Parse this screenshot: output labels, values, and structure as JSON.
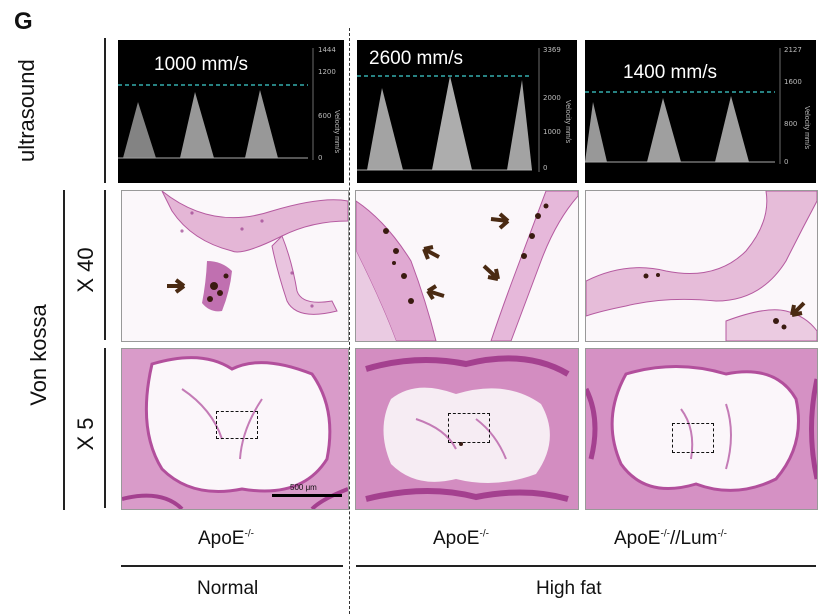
{
  "panel_letter": "G",
  "rows": {
    "ultrasound": "ultrasound",
    "von_kossa": "Von kossa",
    "x40": "X 40",
    "x5": "X 5"
  },
  "ultrasound_panels": [
    {
      "velocity_label": "1000 mm/s",
      "ticks": [
        "1444",
        "1200",
        "600",
        "0"
      ],
      "axis_title": "Velocity mm/s"
    },
    {
      "velocity_label": "2600 mm/s",
      "ticks": [
        "3369",
        "2000",
        "1000",
        "0"
      ],
      "axis_title": "Velocity mm/s"
    },
    {
      "velocity_label": "1400 mm/s",
      "ticks": [
        "2127",
        "1600",
        "800",
        "0"
      ],
      "axis_title": "Velocity mm/s"
    }
  ],
  "scale_bar": "500 μm",
  "genotypes": [
    {
      "base": "ApoE",
      "sup": "-/-",
      "suffix": "",
      "sup2": ""
    },
    {
      "base": "ApoE",
      "sup": "-/-",
      "suffix": "",
      "sup2": ""
    },
    {
      "base": "ApoE",
      "sup": "-/-",
      "suffix": "//Lum",
      "sup2": "-/-"
    }
  ],
  "diets": [
    "Normal",
    "High fat"
  ],
  "colors": {
    "doppler_line": "#3fd0d0",
    "stain_light": "#e9c6df",
    "stain_dark": "#b04b98",
    "calcium": "#3a1a10",
    "arrow": "#4a2a12"
  }
}
